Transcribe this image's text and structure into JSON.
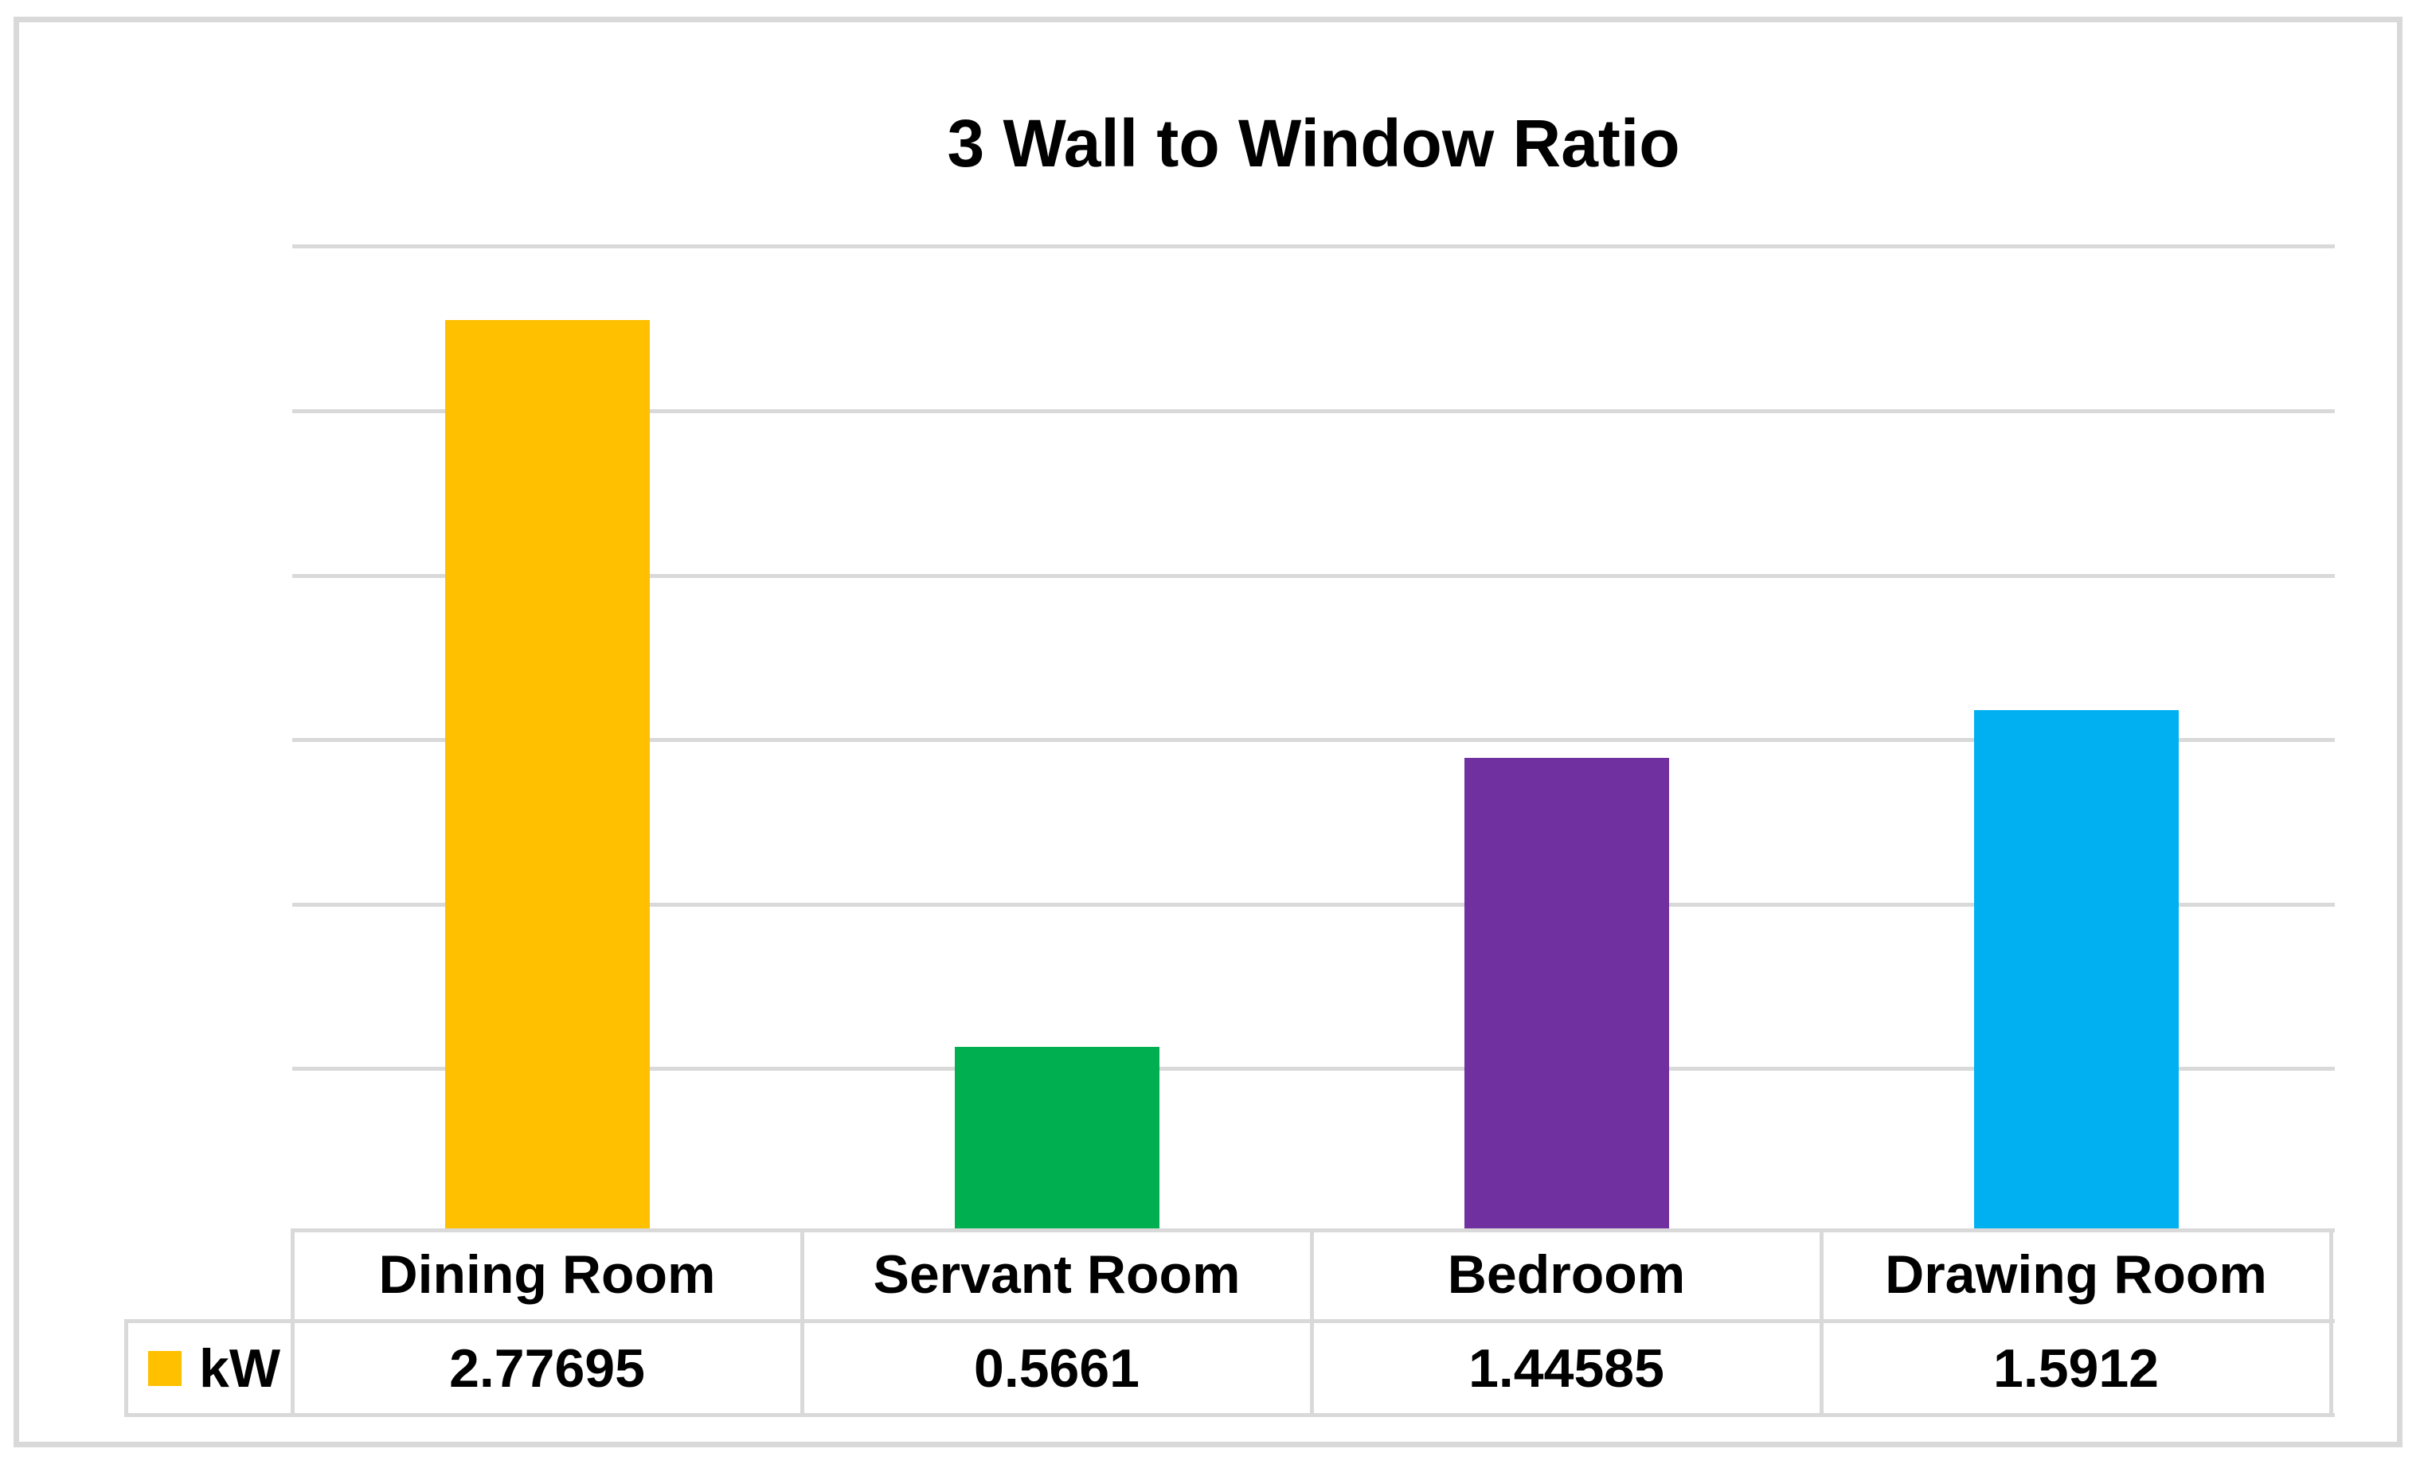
{
  "chart_data": {
    "type": "bar",
    "title": "3 Wall to Window Ratio",
    "categories": [
      "Dining Room",
      "Servant Room",
      "Bedroom",
      "Drawing Room"
    ],
    "series": [
      {
        "name": "kW",
        "values": [
          2.77695,
          0.5661,
          1.44585,
          1.5912
        ]
      }
    ],
    "value_labels": [
      "2.77695",
      "0.5661",
      "1.44585",
      "1.5912"
    ],
    "bar_colors": [
      "#FFC000",
      "#00B050",
      "#7030A0",
      "#00B0F0"
    ],
    "legend_swatch_color": "#FFC000",
    "ylim": [
      0,
      3.1
    ],
    "gridline_step": 0.5,
    "gridline_max": 3.0,
    "grid": true,
    "y_axis_labels_visible": false,
    "legend_position": "bottom-left",
    "data_table_shown": true,
    "colors": {
      "gridline": "#D9D9D9",
      "table_border": "#D9D9D9",
      "frame_border": "#D9D9D9",
      "text": "#000000",
      "background": "#FFFFFF"
    }
  }
}
